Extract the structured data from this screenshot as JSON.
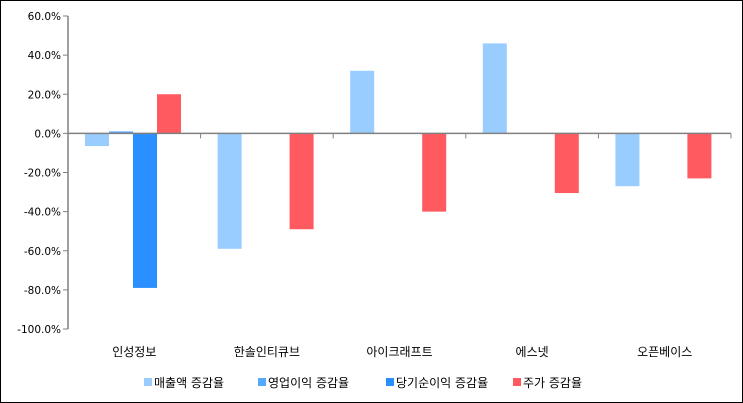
{
  "chart_data": {
    "type": "bar",
    "categories": [
      "인성정보",
      "한솔인티큐브",
      "아이크래프트",
      "에스넷",
      "오픈베이스"
    ],
    "series": [
      {
        "name": "매출액 증감율",
        "color": "#99ccff",
        "values": [
          -6.5,
          -59,
          32,
          46,
          -27
        ]
      },
      {
        "name": "영업이익 증감율",
        "color": "#55a8ff",
        "values": [
          1,
          null,
          null,
          null,
          null
        ]
      },
      {
        "name": "당기순이익 증감율",
        "color": "#2a8fff",
        "values": [
          -79,
          null,
          null,
          null,
          null
        ]
      },
      {
        "name": "주가 증감율",
        "color": "#ff5a5f",
        "values": [
          20,
          -49,
          -40,
          -30.5,
          -23
        ]
      }
    ],
    "yticks": [
      "60.0%",
      "40.0%",
      "20.0%",
      "0.0%",
      "-20.0%",
      "-40.0%",
      "-60.0%",
      "-80.0%",
      "-100.0%"
    ],
    "ylim": [
      -100,
      60
    ],
    "grid": false,
    "legend": "bottom"
  }
}
